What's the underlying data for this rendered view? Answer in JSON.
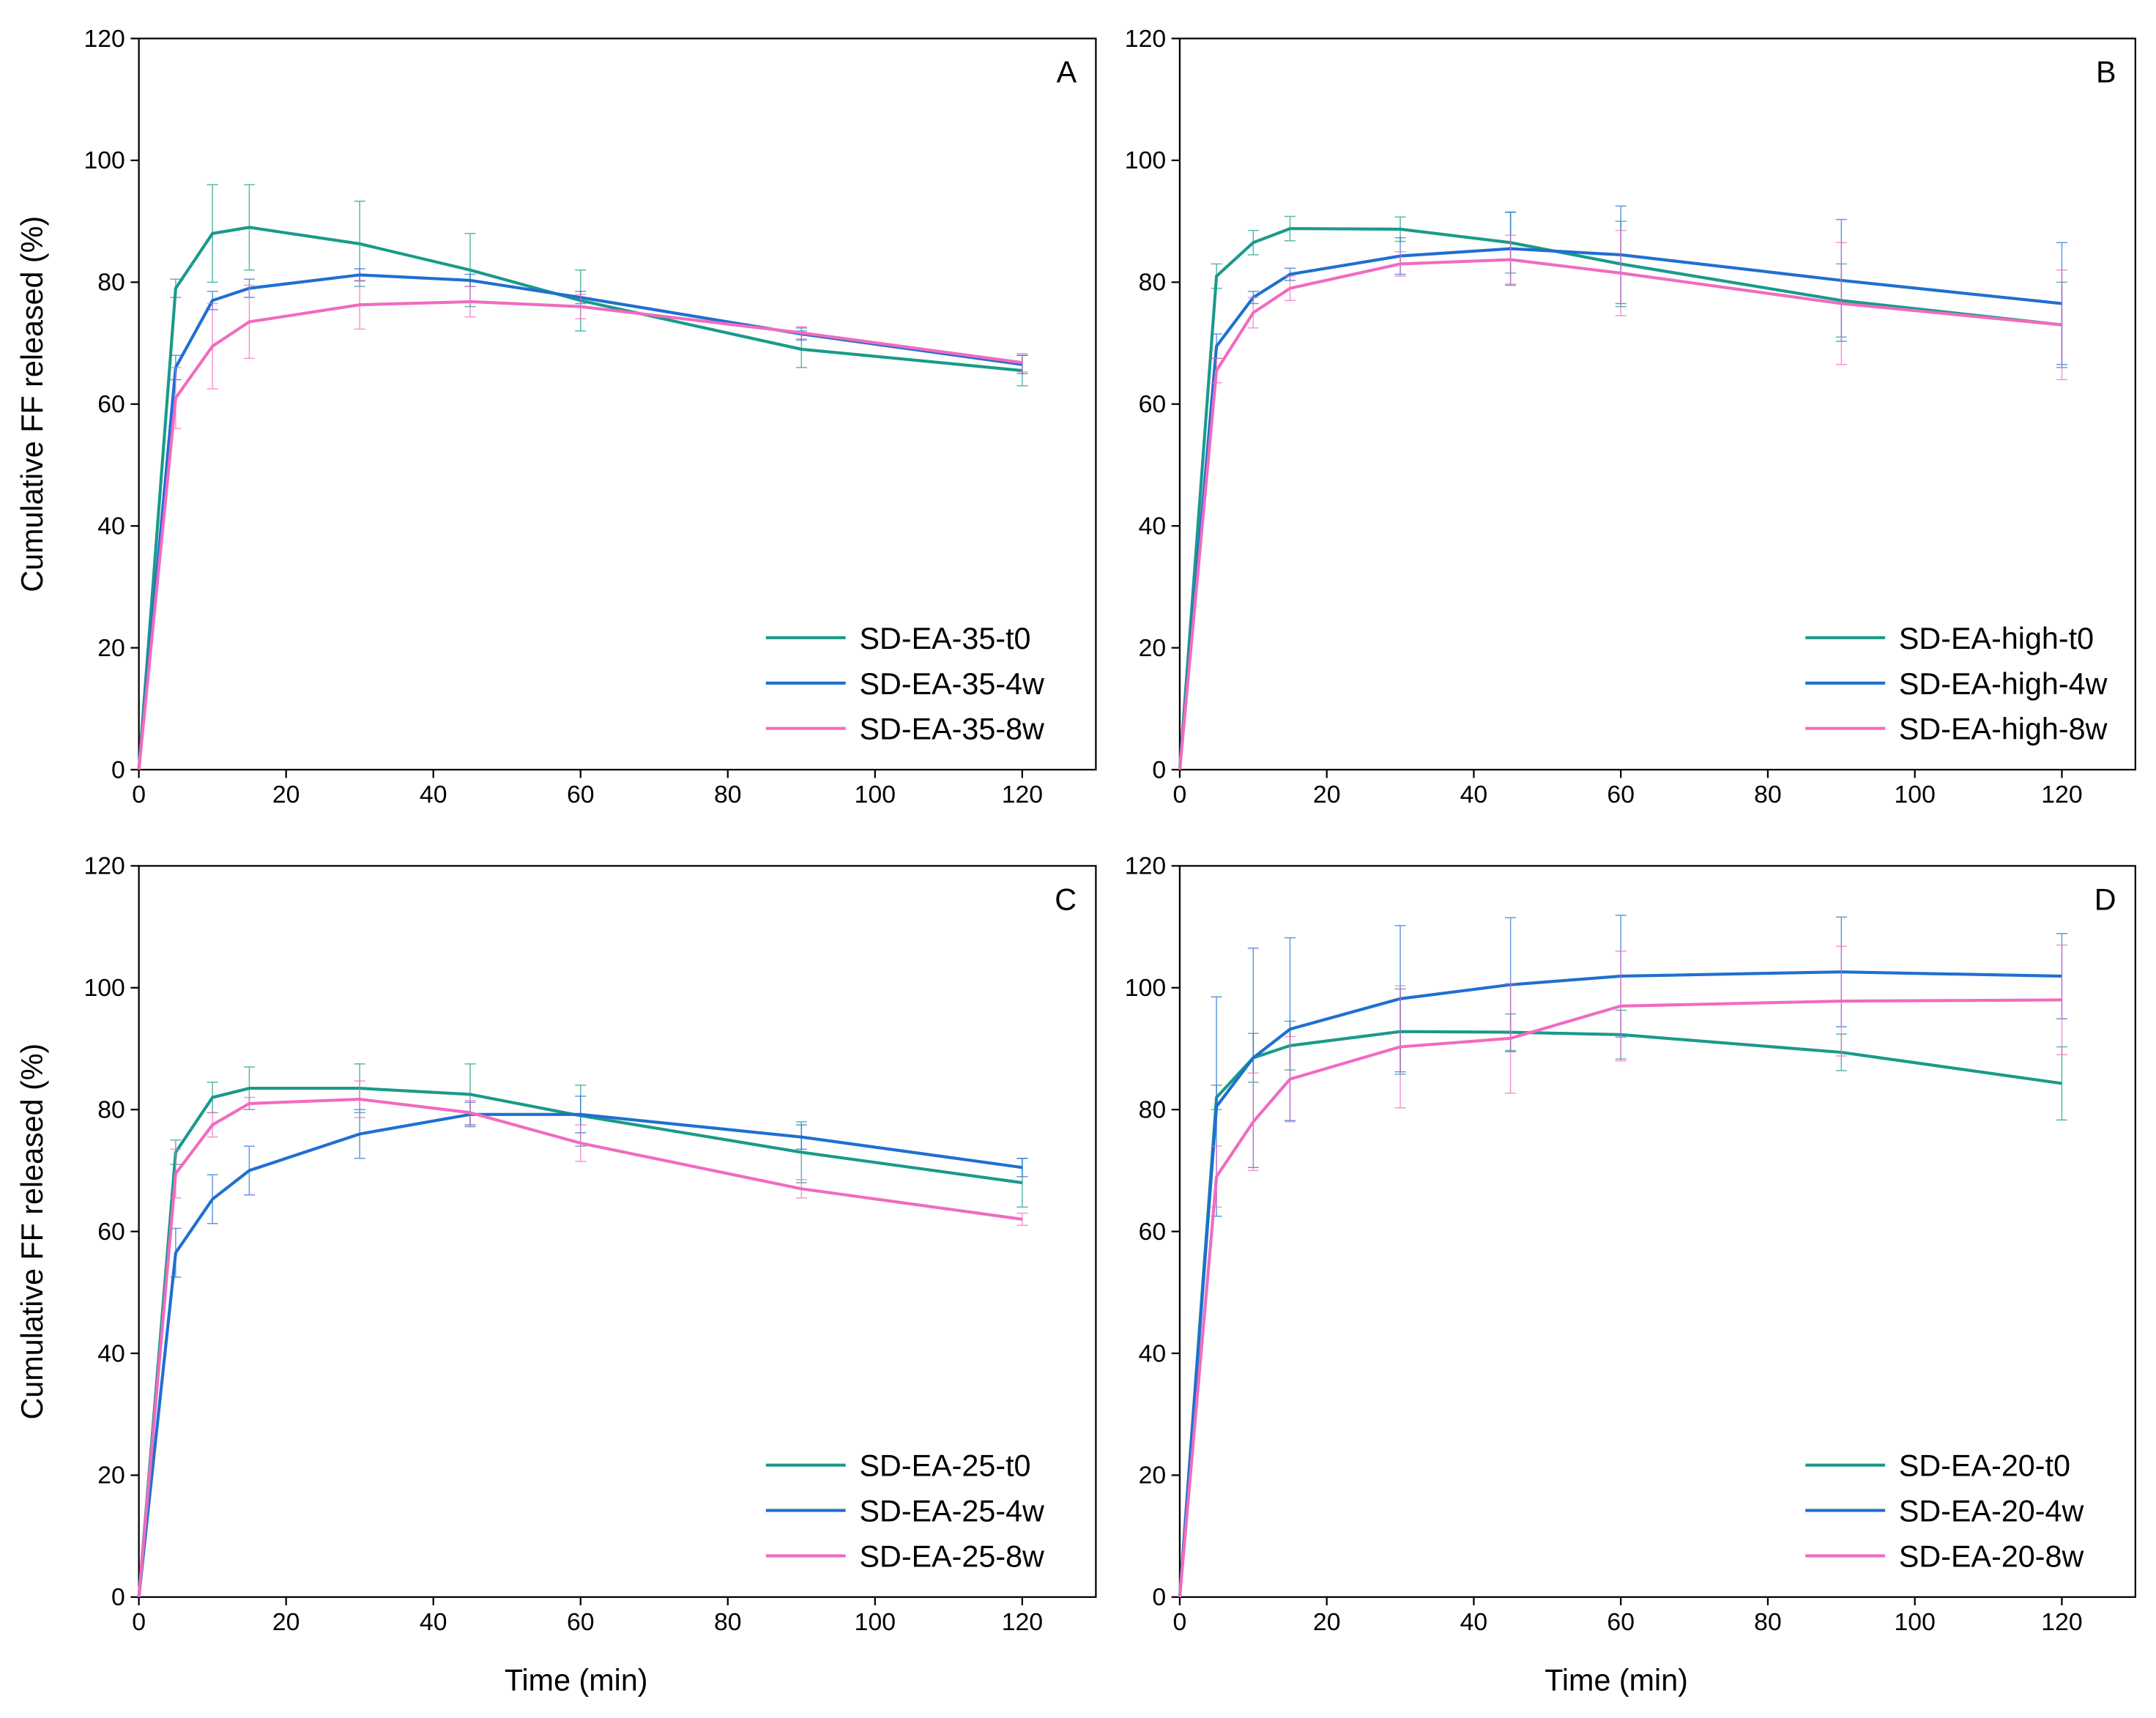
{
  "chart_data": [
    {
      "type": "line",
      "panel_label": "A",
      "ylabel": "Cumulative FF released (%)",
      "x": [
        0,
        5,
        10,
        15,
        30,
        45,
        60,
        90,
        120
      ],
      "xlim": [
        0,
        130
      ],
      "xticks": [
        0,
        20,
        40,
        60,
        80,
        100,
        120
      ],
      "ylim": [
        0,
        120
      ],
      "yticks": [
        0,
        20,
        40,
        60,
        80,
        100,
        120
      ],
      "legend": "lower right",
      "series": [
        {
          "name": "SD-EA-35-t0",
          "color": "#1a9a8a",
          "values": [
            0,
            79,
            88,
            89,
            86.3,
            82,
            77,
            69,
            65.5
          ],
          "errors": [
            0,
            1.5,
            8,
            7,
            7,
            6,
            5,
            3,
            2.5
          ]
        },
        {
          "name": "SD-EA-35-4w",
          "color": "#1f6fd0",
          "values": [
            0,
            66,
            77,
            79,
            81.2,
            80.3,
            77.5,
            71.5,
            66.5
          ],
          "errors": [
            0,
            2,
            1.5,
            1.5,
            1,
            1,
            1,
            1,
            1.5
          ]
        },
        {
          "name": "SD-EA-35-8w",
          "color": "#f06bc0",
          "values": [
            0,
            61,
            69.5,
            73.5,
            76.3,
            76.8,
            76,
            71.7,
            66.8
          ],
          "errors": [
            0,
            5,
            7,
            6,
            4,
            2.5,
            2,
            1,
            1.5
          ]
        }
      ]
    },
    {
      "type": "line",
      "panel_label": "B",
      "x": [
        0,
        5,
        10,
        15,
        30,
        45,
        60,
        90,
        120
      ],
      "xlim": [
        0,
        130
      ],
      "xticks": [
        0,
        20,
        40,
        60,
        80,
        100,
        120
      ],
      "ylim": [
        0,
        120
      ],
      "yticks": [
        0,
        20,
        40,
        60,
        80,
        100,
        120
      ],
      "legend": "lower right",
      "series": [
        {
          "name": "SD-EA-high-t0",
          "color": "#1a9a8a",
          "values": [
            0,
            81,
            86.5,
            88.8,
            88.7,
            86.5,
            83,
            77,
            73
          ],
          "errors": [
            0,
            2,
            2,
            2,
            2,
            5,
            7,
            6,
            7
          ]
        },
        {
          "name": "SD-EA-high-4w",
          "color": "#1f6fd0",
          "values": [
            0,
            69.5,
            77.5,
            81.3,
            84.3,
            85.5,
            84.5,
            80.3,
            76.5
          ],
          "errors": [
            0,
            2,
            1,
            1,
            3,
            6,
            8,
            10,
            10
          ]
        },
        {
          "name": "SD-EA-high-8w",
          "color": "#f06bc0",
          "values": [
            0,
            65.5,
            75,
            79,
            83,
            83.7,
            81.5,
            76.5,
            73
          ],
          "errors": [
            0,
            2,
            2.5,
            2,
            2,
            4,
            7,
            10,
            9
          ]
        }
      ]
    },
    {
      "type": "line",
      "panel_label": "C",
      "ylabel": "Cumulative FF released (%)",
      "xlabel": "Time (min)",
      "x": [
        0,
        5,
        10,
        15,
        30,
        45,
        60,
        90,
        120
      ],
      "xlim": [
        0,
        130
      ],
      "xticks": [
        0,
        20,
        40,
        60,
        80,
        100,
        120
      ],
      "ylim": [
        0,
        120
      ],
      "yticks": [
        0,
        20,
        40,
        60,
        80,
        100,
        120
      ],
      "legend": "lower right",
      "series": [
        {
          "name": "SD-EA-25-t0",
          "color": "#1a9a8a",
          "values": [
            0,
            73,
            82,
            83.5,
            83.5,
            82.5,
            79,
            73,
            68
          ],
          "errors": [
            0,
            2,
            2.5,
            3.5,
            4,
            5,
            5,
            5,
            4
          ]
        },
        {
          "name": "SD-EA-25-4w",
          "color": "#1f6fd0",
          "values": [
            0,
            56.5,
            65.3,
            70,
            76,
            79.2,
            79.2,
            75.5,
            70.5
          ],
          "errors": [
            0,
            4,
            4,
            4,
            4,
            2,
            3,
            2,
            1.5
          ]
        },
        {
          "name": "SD-EA-25-8w",
          "color": "#f06bc0",
          "values": [
            0,
            69.5,
            77.5,
            81,
            81.7,
            79.5,
            74.5,
            67,
            62
          ],
          "errors": [
            0,
            4,
            2,
            1,
            3,
            2,
            3,
            1.5,
            1
          ]
        }
      ]
    },
    {
      "type": "line",
      "panel_label": "D",
      "xlabel": "Time (min)",
      "x": [
        0,
        5,
        10,
        15,
        30,
        45,
        60,
        90,
        120
      ],
      "xlim": [
        0,
        130
      ],
      "xticks": [
        0,
        20,
        40,
        60,
        80,
        100,
        120
      ],
      "ylim": [
        0,
        120
      ],
      "yticks": [
        0,
        20,
        40,
        60,
        80,
        100,
        120
      ],
      "legend": "lower right",
      "series": [
        {
          "name": "SD-EA-20-t0",
          "color": "#1a9a8a",
          "values": [
            0,
            82,
            88.5,
            90.5,
            92.8,
            92.7,
            92.3,
            89.4,
            84.3
          ],
          "errors": [
            0,
            2,
            4,
            4,
            7,
            3,
            4,
            3,
            6
          ]
        },
        {
          "name": "SD-EA-20-4w",
          "color": "#1f6fd0",
          "values": [
            0,
            80.5,
            88.5,
            93.2,
            98.2,
            100.5,
            101.9,
            102.6,
            101.9
          ],
          "errors": [
            0,
            18,
            18,
            15,
            12,
            11,
            10,
            9,
            7
          ]
        },
        {
          "name": "SD-EA-20-8w",
          "color": "#f06bc0",
          "values": [
            0,
            69,
            78,
            85,
            90.3,
            91.7,
            97,
            97.8,
            98
          ],
          "errors": [
            0,
            5,
            8,
            7,
            10,
            9,
            9,
            9,
            9
          ]
        }
      ]
    }
  ]
}
